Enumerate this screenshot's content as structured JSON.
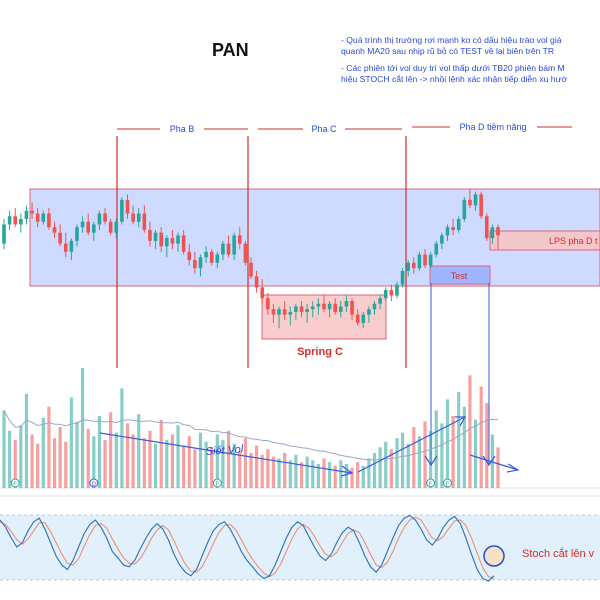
{
  "title": "PAN",
  "notes": [
    "- Quá trình thị trường rơi mạnh ko có dấu hiệu trào vol giá\nquanh MA20 sau nhịp rũ bỏ có TEST về lại biên trên TR",
    "- Các phiên tới vol duy trì vol thấp dưới TB20 phiên bám M\nhiệu STOCH cắt lên -> nhồi lệnh xác nhận tiếp diễn xu hướ"
  ],
  "colors": {
    "up": "#26a69a",
    "down": "#ef5350",
    "range_fill": "#c9d6ff",
    "range_border": "#e0637b",
    "annotation_red": "#d42d2d",
    "annotation_blue": "#2c49d6",
    "stoch_band": "#e2f0fb",
    "stoch_k": "#2a6fb8",
    "stoch_d": "#e6927a"
  },
  "chart_data": [
    {
      "type": "candlestick",
      "series": [
        {
          "name": "",
          "values": [
            [
              31.2,
              32.1,
              31.0,
              31.9
            ],
            [
              31.9,
              32.4,
              31.7,
              32.2
            ],
            [
              32.2,
              32.5,
              31.8,
              31.9
            ],
            [
              31.9,
              32.3,
              31.6,
              32.1
            ],
            [
              32.1,
              32.6,
              31.9,
              32.4
            ],
            [
              32.4,
              32.7,
              32.1,
              32.3
            ],
            [
              32.3,
              32.5,
              31.8,
              32.0
            ],
            [
              32.0,
              32.4,
              31.9,
              32.3
            ],
            [
              32.3,
              32.5,
              31.7,
              31.8
            ],
            [
              31.8,
              32.0,
              31.4,
              31.6
            ],
            [
              31.6,
              31.9,
              31.1,
              31.2
            ],
            [
              31.2,
              31.6,
              30.7,
              30.9
            ],
            [
              30.9,
              31.4,
              30.6,
              31.3
            ],
            [
              31.3,
              31.9,
              31.1,
              31.8
            ],
            [
              31.8,
              32.2,
              31.6,
              32.0
            ],
            [
              32.0,
              32.3,
              31.5,
              31.6
            ],
            [
              31.6,
              32.0,
              31.3,
              31.9
            ],
            [
              31.9,
              32.4,
              31.7,
              32.3
            ],
            [
              32.3,
              32.5,
              31.9,
              32.0
            ],
            [
              32.0,
              32.1,
              31.5,
              31.6
            ],
            [
              31.6,
              32.1,
              31.4,
              32.0
            ],
            [
              32.0,
              32.9,
              31.9,
              32.8
            ],
            [
              32.8,
              33.0,
              32.1,
              32.3
            ],
            [
              32.3,
              32.6,
              31.9,
              32.0
            ],
            [
              32.0,
              32.5,
              31.8,
              32.3
            ],
            [
              32.3,
              32.6,
              31.6,
              31.7
            ],
            [
              31.7,
              32.0,
              31.1,
              31.3
            ],
            [
              31.3,
              31.7,
              31.0,
              31.6
            ],
            [
              31.6,
              31.8,
              30.9,
              31.1
            ],
            [
              31.1,
              31.5,
              30.7,
              31.4
            ],
            [
              31.4,
              31.7,
              31.0,
              31.2
            ],
            [
              31.2,
              31.6,
              30.9,
              31.5
            ],
            [
              31.5,
              31.7,
              30.8,
              30.9
            ],
            [
              30.9,
              31.2,
              30.4,
              30.6
            ],
            [
              30.6,
              30.9,
              30.1,
              30.3
            ],
            [
              30.3,
              30.8,
              30.0,
              30.7
            ],
            [
              30.7,
              31.1,
              30.5,
              30.9
            ],
            [
              30.9,
              31.0,
              30.4,
              30.5
            ],
            [
              30.5,
              30.9,
              30.3,
              30.8
            ],
            [
              30.8,
              31.3,
              30.6,
              31.2
            ],
            [
              31.2,
              31.5,
              30.7,
              30.8
            ],
            [
              30.8,
              31.6,
              30.6,
              31.5
            ],
            [
              31.5,
              31.8,
              31.0,
              31.2
            ],
            [
              31.2,
              31.3,
              30.4,
              30.5
            ],
            [
              30.5,
              30.7,
              29.9,
              30.0
            ],
            [
              30.0,
              30.2,
              29.4,
              29.6
            ],
            [
              29.6,
              29.9,
              29.0,
              29.2
            ],
            [
              29.2,
              29.4,
              28.6,
              28.8
            ],
            [
              28.8,
              29.0,
              28.3,
              28.6
            ],
            [
              28.6,
              28.9,
              28.1,
              28.8
            ],
            [
              28.8,
              29.1,
              28.4,
              28.6
            ],
            [
              28.6,
              28.9,
              28.2,
              28.7
            ],
            [
              28.7,
              29.0,
              28.4,
              28.9
            ],
            [
              28.9,
              29.1,
              28.5,
              28.7
            ],
            [
              28.7,
              29.0,
              28.3,
              28.8
            ],
            [
              28.8,
              29.1,
              28.5,
              28.9
            ],
            [
              28.9,
              29.2,
              28.6,
              29.0
            ],
            [
              29.0,
              29.3,
              28.7,
              28.8
            ],
            [
              28.8,
              29.1,
              28.5,
              29.0
            ],
            [
              29.0,
              29.2,
              28.6,
              28.7
            ],
            [
              28.7,
              29.1,
              28.5,
              28.9
            ],
            [
              28.9,
              29.3,
              28.7,
              29.1
            ],
            [
              29.1,
              29.2,
              28.4,
              28.6
            ],
            [
              28.6,
              28.8,
              28.2,
              28.3
            ],
            [
              28.3,
              28.7,
              28.1,
              28.6
            ],
            [
              28.6,
              28.9,
              28.3,
              28.8
            ],
            [
              28.8,
              29.1,
              28.6,
              29.0
            ],
            [
              29.0,
              29.3,
              28.8,
              29.2
            ],
            [
              29.2,
              29.6,
              29.1,
              29.5
            ],
            [
              29.5,
              29.7,
              29.1,
              29.3
            ],
            [
              29.3,
              29.8,
              29.2,
              29.7
            ],
            [
              29.7,
              30.3,
              29.6,
              30.2
            ],
            [
              30.2,
              30.6,
              30.0,
              30.5
            ],
            [
              30.5,
              30.7,
              30.1,
              30.3
            ],
            [
              30.3,
              30.9,
              30.2,
              30.8
            ],
            [
              30.8,
              31.0,
              30.3,
              30.4
            ],
            [
              30.4,
              30.9,
              30.3,
              30.8
            ],
            [
              30.8,
              31.3,
              30.7,
              31.2
            ],
            [
              31.2,
              31.6,
              31.0,
              31.5
            ],
            [
              31.5,
              31.9,
              31.3,
              31.8
            ],
            [
              31.8,
              32.1,
              31.5,
              31.7
            ],
            [
              31.7,
              32.2,
              31.6,
              32.1
            ],
            [
              32.1,
              32.9,
              32.0,
              32.8
            ],
            [
              32.8,
              33.2,
              32.5,
              32.6
            ],
            [
              32.6,
              33.1,
              32.4,
              33.0
            ],
            [
              33.0,
              33.1,
              32.1,
              32.2
            ],
            [
              32.2,
              32.3,
              31.3,
              31.4
            ],
            [
              31.4,
              31.9,
              31.2,
              31.8
            ],
            [
              31.8,
              31.9,
              31.0,
              31.5
            ]
          ]
        }
      ],
      "volume": [
        4.2,
        3.1,
        2.6,
        3.4,
        5.1,
        2.9,
        2.4,
        3.8,
        4.4,
        2.7,
        3.3,
        2.5,
        4.9,
        3.6,
        6.5,
        3.2,
        2.8,
        3.9,
        2.6,
        4.1,
        3.0,
        5.4,
        3.5,
        2.9,
        4.0,
        2.7,
        3.1,
        2.4,
        3.7,
        2.6,
        2.9,
        3.4,
        2.3,
        2.8,
        2.1,
        3.0,
        2.5,
        2.2,
        2.9,
        2.6,
        3.1,
        2.4,
        2.0,
        2.7,
        1.9,
        2.3,
        1.8,
        2.1,
        1.7,
        1.6,
        1.9,
        1.5,
        1.8,
        1.4,
        1.7,
        1.5,
        1.3,
        1.6,
        1.4,
        1.2,
        1.5,
        1.3,
        1.1,
        1.4,
        1.2,
        1.6,
        1.9,
        2.2,
        2.5,
        2.1,
        2.7,
        3.0,
        2.4,
        3.3,
        2.8,
        3.6,
        3.1,
        4.2,
        3.5,
        4.8,
        3.9,
        5.2,
        4.4,
        6.1,
        3.7,
        5.5,
        4.6,
        2.9,
        2.2
      ],
      "stoch_k": [
        80,
        72,
        60,
        50,
        55,
        68,
        78,
        82,
        70,
        55,
        40,
        30,
        25,
        35,
        50,
        65,
        75,
        80,
        72,
        60,
        45,
        38,
        30,
        28,
        35,
        48,
        60,
        70,
        76,
        70,
        58,
        42,
        30,
        22,
        18,
        25,
        40,
        55,
        68,
        75,
        78,
        70,
        58,
        45,
        35,
        28,
        20,
        15,
        18,
        30,
        45,
        60,
        72,
        78,
        74,
        62,
        50,
        40,
        35,
        42,
        55,
        66,
        72,
        68,
        55,
        40,
        28,
        22,
        30,
        45,
        60,
        74,
        82,
        85,
        80,
        70,
        58,
        52,
        60,
        72,
        80,
        84,
        76,
        60,
        42,
        25,
        15,
        12,
        18
      ],
      "stoch_d": [
        78,
        75,
        67,
        58,
        53,
        59,
        68,
        77,
        77,
        67,
        55,
        42,
        32,
        30,
        37,
        51,
        64,
        74,
        76,
        71,
        59,
        48,
        38,
        32,
        31,
        37,
        48,
        60,
        69,
        74,
        69,
        57,
        43,
        31,
        23,
        22,
        28,
        40,
        54,
        66,
        74,
        75,
        69,
        58,
        46,
        36,
        28,
        21,
        17,
        21,
        31,
        45,
        59,
        70,
        75,
        71,
        62,
        51,
        42,
        39,
        44,
        55,
        65,
        69,
        66,
        55,
        42,
        30,
        27,
        33,
        45,
        60,
        72,
        80,
        83,
        80,
        70,
        60,
        57,
        62,
        71,
        79,
        80,
        74,
        60,
        43,
        27,
        17,
        15
      ]
    }
  ],
  "annotations": {
    "phases": [
      "Pha B",
      "Pha C",
      "Pha D tiềm năng"
    ],
    "spring": "Spring C",
    "test": "Test",
    "lps": "LPS pha D t",
    "siet_vol": "Siết Vol",
    "stoch_note": "Stoch cắt lên v"
  },
  "volume_markers": [
    "F",
    "D",
    "F",
    "F",
    "F"
  ]
}
